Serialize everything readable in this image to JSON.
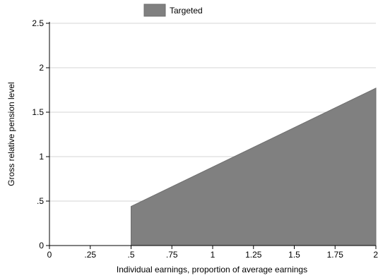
{
  "chart_data": {
    "type": "area",
    "legend": {
      "position": "top-center",
      "entries": [
        {
          "name": "Targeted",
          "color": "#808080"
        }
      ]
    },
    "xlabel": "Individual earnings, proportion of average earnings",
    "ylabel": "Gross relative pension level",
    "xlim": [
      0,
      2
    ],
    "ylim": [
      0,
      2.5
    ],
    "x_ticks": [
      0,
      0.25,
      0.5,
      0.75,
      1,
      1.25,
      1.5,
      1.75,
      2
    ],
    "x_tick_labels": [
      "0",
      ".25",
      ".5",
      ".75",
      "1",
      "1.25",
      "1.5",
      "1.75",
      "2"
    ],
    "y_ticks": [
      0,
      0.5,
      1,
      1.5,
      2,
      2.5
    ],
    "y_tick_labels": [
      "0",
      ".5",
      "1",
      "1.5",
      "2",
      "2.5"
    ],
    "grid": {
      "horizontal": true,
      "vertical": false
    },
    "series": [
      {
        "name": "Targeted",
        "color": "#808080",
        "x": [
          0,
          0.5,
          0.5,
          2
        ],
        "y": [
          0,
          0,
          0.44,
          1.77
        ]
      }
    ]
  }
}
